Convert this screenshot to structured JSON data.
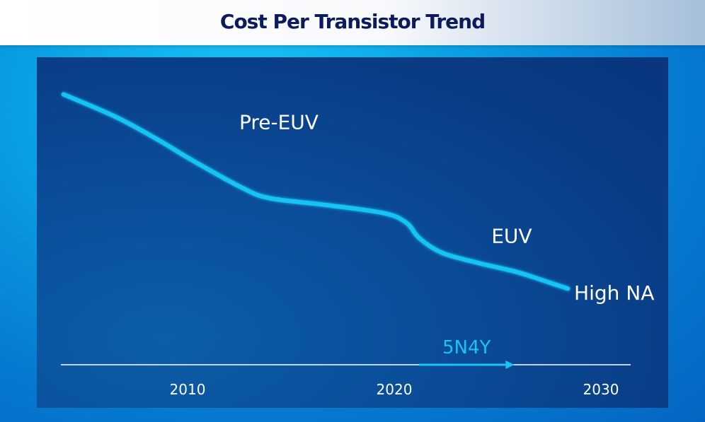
{
  "title": "Cost Per Transistor Trend",
  "chart_data": {
    "type": "line",
    "title": "Cost Per Transistor Trend",
    "xlabel": "",
    "ylabel": "",
    "x_ticks": [
      "2010",
      "2020",
      "2030"
    ],
    "x_tick_values": [
      2010,
      2020,
      2030
    ],
    "xlim": [
      2003,
      2031
    ],
    "grid": false,
    "legend": "none",
    "y_values_are_qualitative": true,
    "series": [
      {
        "x": [
          2004,
          2006.5,
          2008.5,
          2010.3,
          2012.7,
          2014,
          2016.5,
          2019.5,
          2020.6,
          2021.2,
          2022.3,
          2024,
          2025.8,
          2026.7,
          2027.7,
          2028.4
        ],
        "y": [
          95,
          86,
          77,
          68,
          57,
          53,
          50.5,
          47,
          43,
          37,
          31,
          27,
          23.5,
          21.2,
          18.4,
          16.5
        ],
        "color": "#19c4f4"
      }
    ],
    "annotations": [
      {
        "text": "Pre-EUV",
        "x": 2012.5,
        "y": 81
      },
      {
        "text": "EUV",
        "x": 2024.7,
        "y": 35
      },
      {
        "text": "High NA",
        "x": 2028.7,
        "y": 12
      }
    ],
    "arrow": {
      "text": "5N4Y",
      "x_start": 2021.2,
      "x_end": 2025.8
    },
    "colors": {
      "line": "#19c4f4",
      "axis": "#ffffff",
      "text": "#ffffff",
      "arrow": "#19c4f4"
    }
  }
}
